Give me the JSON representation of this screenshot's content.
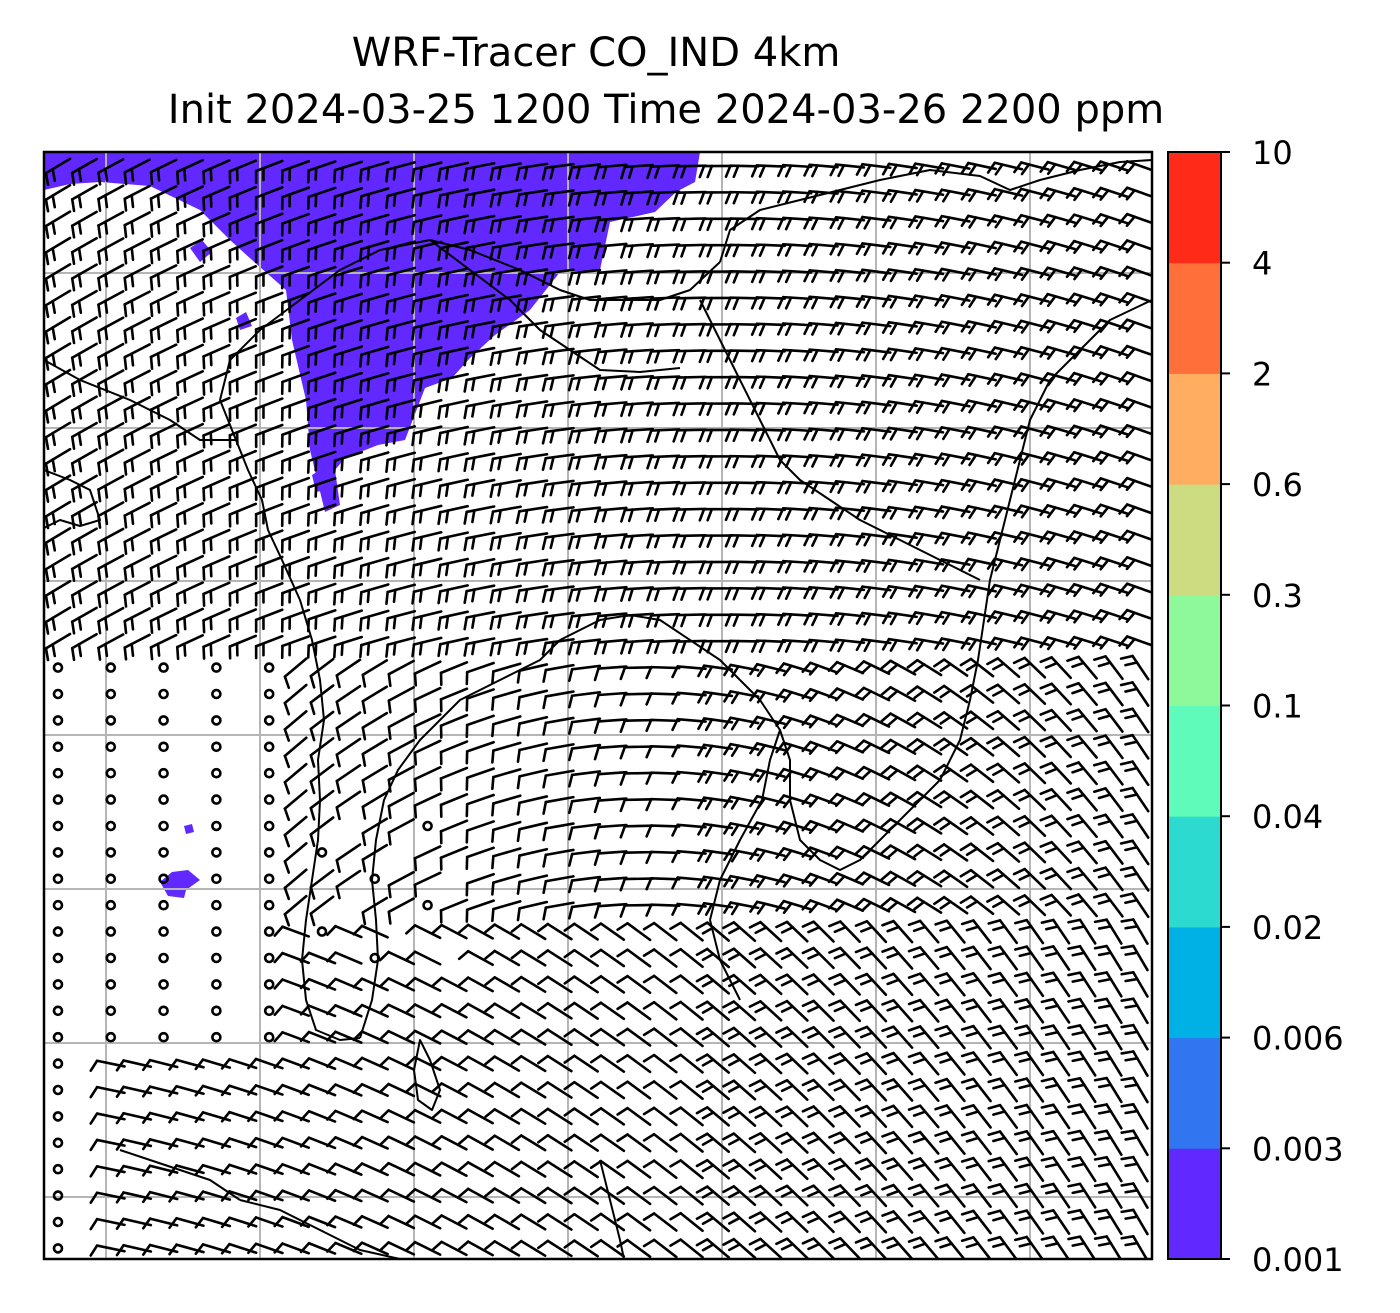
{
  "title": {
    "line1": "WRF-Tracer CO_IND 4km",
    "line2": "Init 2024-03-25 1200 Time 2024-03-26 2200 ppm"
  },
  "colorbar": {
    "tick_labels": [
      "0.001",
      "0.003",
      "0.006",
      "0.02",
      "0.04",
      "0.1",
      "0.3",
      "0.6",
      "2",
      "4",
      "10"
    ],
    "colors": [
      "#6128ff",
      "#3175f0",
      "#00b1e6",
      "#2cdad0",
      "#5efbba",
      "#8ef99a",
      "#cddc80",
      "#ffad60",
      "#ff6f39",
      "#ff2b18"
    ]
  },
  "map": {
    "tracer_fill_color": "#6128ff",
    "grid_color": "#b5b5b5",
    "grid_lines": {
      "vertical": 7,
      "horizontal": 7
    },
    "wind_barb_color": "#000000"
  }
}
